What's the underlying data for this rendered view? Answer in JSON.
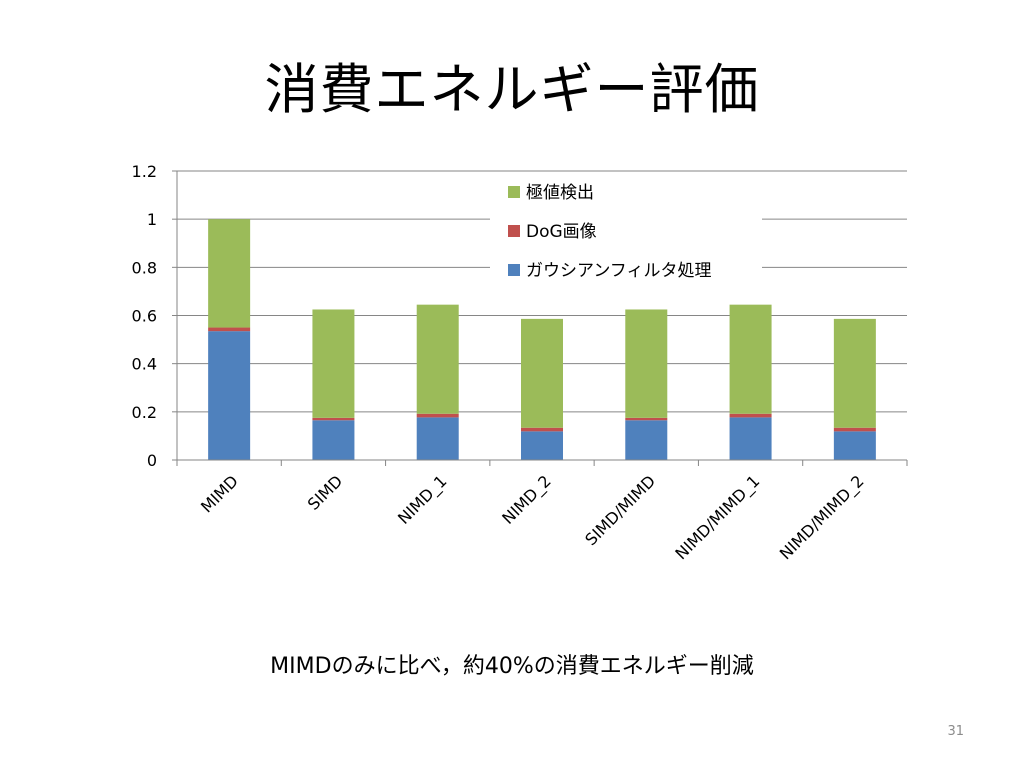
{
  "slide": {
    "title": "消費エネルギー評価",
    "caption": "MIMDのみに比べ，約40%の消費エネルギー削減",
    "page_number": "31"
  },
  "colors": {
    "gaussian": "#4F81BD",
    "dog": "#C0504D",
    "extrema": "#9BBB59",
    "gridline": "#868686"
  },
  "chart_data": {
    "type": "bar",
    "stacked": true,
    "categories": [
      "MIMD",
      "SIMD",
      "NIMD_1",
      "NIMD_2",
      "SIMD/MIMD",
      "NIMD/MIMD_1",
      "NIMD/MIMD_2"
    ],
    "series": [
      {
        "name": "ガウシアンフィルタ処理",
        "color": "#4F81BD",
        "values": [
          0.535,
          0.165,
          0.177,
          0.119,
          0.165,
          0.177,
          0.119
        ]
      },
      {
        "name": "DoG画像",
        "color": "#C0504D",
        "values": [
          0.015,
          0.01,
          0.015,
          0.015,
          0.01,
          0.015,
          0.015
        ]
      },
      {
        "name": "極値検出",
        "color": "#9BBB59",
        "values": [
          0.45,
          0.45,
          0.453,
          0.452,
          0.45,
          0.453,
          0.452
        ]
      }
    ],
    "legend_order": [
      "極値検出",
      "DoG画像",
      "ガウシアンフィルタ処理"
    ],
    "legend_position": "top-right",
    "yticks": [
      "0",
      "0.2",
      "0.4",
      "0.6",
      "0.8",
      "1",
      "1.2"
    ],
    "ylim": [
      0,
      1.2
    ],
    "grid": true,
    "xlabel": "",
    "ylabel": ""
  }
}
